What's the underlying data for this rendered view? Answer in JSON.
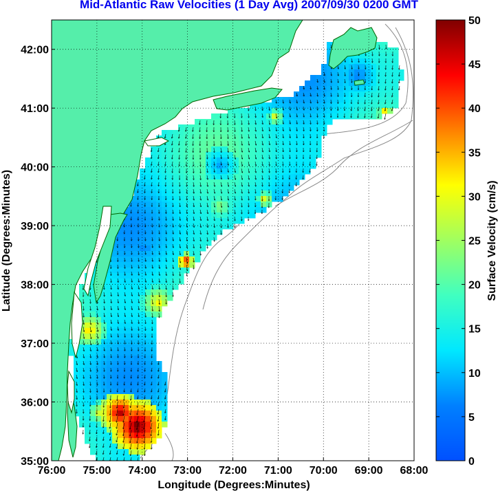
{
  "title": "Mid-Atlantic Raw Velocities (1 Day Avg) 2007/09/30 0200 GMT",
  "map": {
    "xlabel": "Longitude (Degrees:Minutes)",
    "ylabel": "Latitude (Degrees:Minutes)",
    "x_ticks": [
      "76:00",
      "75:00",
      "74:00",
      "73:00",
      "72:00",
      "71:00",
      "70:00",
      "69:00",
      "68:00"
    ],
    "y_ticks": [
      "35:00",
      "36:00",
      "37:00",
      "38:00",
      "39:00",
      "40:00",
      "41:00",
      "42:00"
    ],
    "lon_range": [
      -76,
      -68
    ],
    "lat_range": [
      35,
      42.5
    ],
    "grid": "dotted",
    "land_color": "#55eeaa",
    "coast_color": "#006400",
    "bathymetry_color": "#888888",
    "vector_color": "#000000"
  },
  "colorbar": {
    "label": "Surface Velocity (cm/s)",
    "ticks": [
      "0",
      "5",
      "10",
      "15",
      "20",
      "25",
      "30",
      "35",
      "40",
      "45",
      "50"
    ],
    "range": [
      0,
      50
    ],
    "colormap": "jet"
  }
}
